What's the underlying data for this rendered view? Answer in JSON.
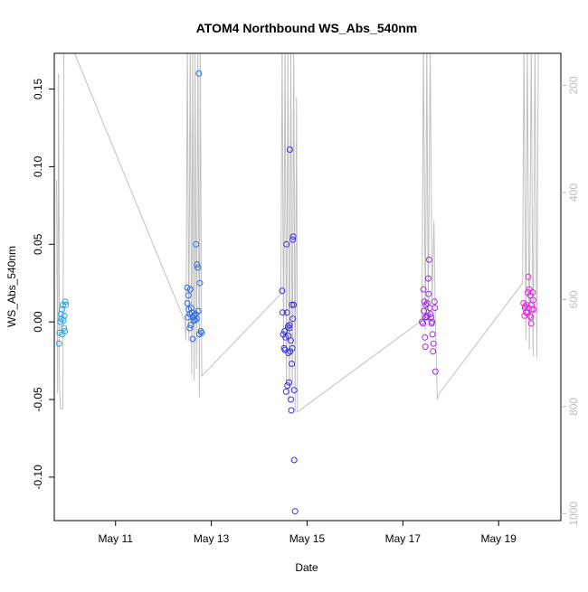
{
  "chart_data": {
    "type": "scatter",
    "title": "ATOM4 Northbound WS_Abs_540nm",
    "xlabel": "Date",
    "ylabel": "WS_Abs_540nm",
    "x_unit": "days (May)",
    "xlim": [
      9.72,
      20.3
    ],
    "ylim": [
      -0.128,
      0.173
    ],
    "x_ticks": [
      {
        "value": 11,
        "label": "May 11"
      },
      {
        "value": 13,
        "label": "May 13"
      },
      {
        "value": 15,
        "label": "May 15"
      },
      {
        "value": 17,
        "label": "May 17"
      },
      {
        "value": 19,
        "label": "May 19"
      }
    ],
    "y_ticks": [
      {
        "value": -0.1,
        "label": "-0.10"
      },
      {
        "value": -0.05,
        "label": "-0.05"
      },
      {
        "value": 0.0,
        "label": "0.00"
      },
      {
        "value": 0.05,
        "label": "0.05"
      },
      {
        "value": 0.1,
        "label": "0.10"
      },
      {
        "value": 0.15,
        "label": "0.15"
      }
    ],
    "y2_range_reversed": [
      1013,
      140
    ],
    "y2_ticks": [
      {
        "value": 200,
        "label": "200"
      },
      {
        "value": 400,
        "label": "400"
      },
      {
        "value": 600,
        "label": "600"
      },
      {
        "value": 800,
        "label": "800"
      },
      {
        "value": 1000,
        "label": "1000"
      }
    ],
    "points": [
      {
        "x": 9.82,
        "y": -0.014,
        "c": "#29a3e6"
      },
      {
        "x": 9.85,
        "y": 0.0,
        "c": "#29a3e6"
      },
      {
        "x": 9.86,
        "y": 0.005,
        "c": "#29a3e6"
      },
      {
        "x": 9.83,
        "y": -0.007,
        "c": "#29a3e6"
      },
      {
        "x": 9.88,
        "y": 0.008,
        "c": "#29a3e6"
      },
      {
        "x": 9.87,
        "y": 0.002,
        "c": "#29a3e6"
      },
      {
        "x": 9.9,
        "y": 0.011,
        "c": "#29a3e6"
      },
      {
        "x": 9.89,
        "y": -0.008,
        "c": "#29a3e6"
      },
      {
        "x": 9.92,
        "y": -0.004,
        "c": "#29a3e6"
      },
      {
        "x": 9.93,
        "y": 0.004,
        "c": "#29a3e6"
      },
      {
        "x": 9.95,
        "y": 0.013,
        "c": "#29a3e6"
      },
      {
        "x": 9.96,
        "y": 0.011,
        "c": "#29a3e6"
      },
      {
        "x": 9.91,
        "y": 0.001,
        "c": "#29a3e6"
      },
      {
        "x": 9.94,
        "y": -0.006,
        "c": "#29a3e6"
      },
      {
        "x": 12.5,
        "y": 0.022,
        "c": "#2d6ce8"
      },
      {
        "x": 12.52,
        "y": 0.017,
        "c": "#2d6ce8"
      },
      {
        "x": 12.5,
        "y": 0.012,
        "c": "#2d6ce8"
      },
      {
        "x": 12.53,
        "y": 0.008,
        "c": "#2d6ce8"
      },
      {
        "x": 12.55,
        "y": 0.005,
        "c": "#2d6ce8"
      },
      {
        "x": 12.51,
        "y": 0.003,
        "c": "#2d6ce8"
      },
      {
        "x": 12.56,
        "y": 0.021,
        "c": "#2d6ce8"
      },
      {
        "x": 12.58,
        "y": 0.009,
        "c": "#2d6ce8"
      },
      {
        "x": 12.6,
        "y": 0.006,
        "c": "#2d6ce8"
      },
      {
        "x": 12.57,
        "y": -0.002,
        "c": "#2d6ce8"
      },
      {
        "x": 12.62,
        "y": 0.003,
        "c": "#2d6ce8"
      },
      {
        "x": 12.64,
        "y": 0.004,
        "c": "#2d6ce8"
      },
      {
        "x": 12.66,
        "y": 0.001,
        "c": "#2d6ce8"
      },
      {
        "x": 12.55,
        "y": -0.004,
        "c": "#2d6ce8"
      },
      {
        "x": 12.61,
        "y": -0.011,
        "c": "#2d6ce8"
      },
      {
        "x": 12.68,
        "y": 0.05,
        "c": "#2d6ce8"
      },
      {
        "x": 12.7,
        "y": 0.037,
        "c": "#2d6ce8"
      },
      {
        "x": 12.72,
        "y": 0.035,
        "c": "#2d6ce8"
      },
      {
        "x": 12.74,
        "y": 0.16,
        "c": "#2d6ce8"
      },
      {
        "x": 12.76,
        "y": 0.025,
        "c": "#2d6ce8"
      },
      {
        "x": 12.73,
        "y": 0.007,
        "c": "#2d6ce8"
      },
      {
        "x": 12.67,
        "y": 0.005,
        "c": "#2d6ce8"
      },
      {
        "x": 12.69,
        "y": 0.002,
        "c": "#2d6ce8"
      },
      {
        "x": 12.78,
        "y": -0.006,
        "c": "#2d6ce8"
      },
      {
        "x": 12.8,
        "y": -0.007,
        "c": "#2d6ce8"
      },
      {
        "x": 12.75,
        "y": -0.008,
        "c": "#2d6ce8"
      },
      {
        "x": 12.63,
        "y": 0.001,
        "c": "#2d6ce8"
      },
      {
        "x": 14.48,
        "y": 0.02,
        "c": "#3a2fe0"
      },
      {
        "x": 14.5,
        "y": -0.008,
        "c": "#3a2fe0"
      },
      {
        "x": 14.52,
        "y": -0.017,
        "c": "#3a2fe0"
      },
      {
        "x": 14.49,
        "y": 0.006,
        "c": "#3a2fe0"
      },
      {
        "x": 14.55,
        "y": -0.01,
        "c": "#3a2fe0"
      },
      {
        "x": 14.54,
        "y": -0.018,
        "c": "#3a2fe0"
      },
      {
        "x": 14.57,
        "y": 0.05,
        "c": "#3a2fe0"
      },
      {
        "x": 14.58,
        "y": 0.006,
        "c": "#3a2fe0"
      },
      {
        "x": 14.6,
        "y": -0.003,
        "c": "#3a2fe0"
      },
      {
        "x": 14.61,
        "y": -0.02,
        "c": "#3a2fe0"
      },
      {
        "x": 14.59,
        "y": -0.041,
        "c": "#3a2fe0"
      },
      {
        "x": 14.56,
        "y": -0.045,
        "c": "#3a2fe0"
      },
      {
        "x": 14.62,
        "y": -0.039,
        "c": "#3a2fe0"
      },
      {
        "x": 14.64,
        "y": 0.111,
        "c": "#3a2fe0"
      },
      {
        "x": 14.63,
        "y": -0.002,
        "c": "#3a2fe0"
      },
      {
        "x": 14.65,
        "y": -0.019,
        "c": "#3a2fe0"
      },
      {
        "x": 14.66,
        "y": -0.05,
        "c": "#3a2fe0"
      },
      {
        "x": 14.67,
        "y": -0.057,
        "c": "#3a2fe0"
      },
      {
        "x": 14.68,
        "y": -0.027,
        "c": "#3a2fe0"
      },
      {
        "x": 14.69,
        "y": -0.017,
        "c": "#3a2fe0"
      },
      {
        "x": 14.7,
        "y": 0.053,
        "c": "#3a2fe0"
      },
      {
        "x": 14.71,
        "y": 0.055,
        "c": "#3a2fe0"
      },
      {
        "x": 14.72,
        "y": 0.011,
        "c": "#3a2fe0"
      },
      {
        "x": 14.7,
        "y": 0.002,
        "c": "#3a2fe0"
      },
      {
        "x": 14.73,
        "y": -0.044,
        "c": "#3a2fe0"
      },
      {
        "x": 14.73,
        "y": -0.089,
        "c": "#3a2fe0"
      },
      {
        "x": 14.75,
        "y": -0.122,
        "c": "#3a2fe0"
      },
      {
        "x": 14.68,
        "y": 0.011,
        "c": "#3a2fe0"
      },
      {
        "x": 14.53,
        "y": -0.006,
        "c": "#3a2fe0"
      },
      {
        "x": 14.66,
        "y": -0.012,
        "c": "#3a2fe0"
      },
      {
        "x": 14.61,
        "y": -0.009,
        "c": "#3a2fe0"
      },
      {
        "x": 14.63,
        "y": -0.004,
        "c": "#3a2fe0"
      },
      {
        "x": 17.4,
        "y": 0.0,
        "c": "#9a2ce3"
      },
      {
        "x": 17.43,
        "y": 0.021,
        "c": "#9a2ce3"
      },
      {
        "x": 17.45,
        "y": 0.013,
        "c": "#9a2ce3"
      },
      {
        "x": 17.44,
        "y": 0.007,
        "c": "#9a2ce3"
      },
      {
        "x": 17.42,
        "y": -0.001,
        "c": "#9a2ce3"
      },
      {
        "x": 17.47,
        "y": 0.003,
        "c": "#9a2ce3"
      },
      {
        "x": 17.48,
        "y": 0.011,
        "c": "#9a2ce3"
      },
      {
        "x": 17.5,
        "y": 0.003,
        "c": "#9a2ce3"
      },
      {
        "x": 17.46,
        "y": -0.01,
        "c": "#9a2ce3"
      },
      {
        "x": 17.47,
        "y": -0.016,
        "c": "#9a2ce3"
      },
      {
        "x": 17.52,
        "y": 0.004,
        "c": "#9a2ce3"
      },
      {
        "x": 17.53,
        "y": 0.028,
        "c": "#9a2ce3"
      },
      {
        "x": 17.55,
        "y": 0.04,
        "c": "#9a2ce3"
      },
      {
        "x": 17.54,
        "y": 0.018,
        "c": "#9a2ce3"
      },
      {
        "x": 17.56,
        "y": 0.009,
        "c": "#9a2ce3"
      },
      {
        "x": 17.58,
        "y": 0.005,
        "c": "#9a2ce3"
      },
      {
        "x": 17.6,
        "y": -0.001,
        "c": "#9a2ce3"
      },
      {
        "x": 17.62,
        "y": -0.008,
        "c": "#9a2ce3"
      },
      {
        "x": 17.64,
        "y": -0.014,
        "c": "#9a2ce3"
      },
      {
        "x": 17.63,
        "y": -0.019,
        "c": "#9a2ce3"
      },
      {
        "x": 17.66,
        "y": 0.013,
        "c": "#9a2ce3"
      },
      {
        "x": 17.67,
        "y": 0.009,
        "c": "#9a2ce3"
      },
      {
        "x": 17.68,
        "y": -0.032,
        "c": "#9a2ce3"
      },
      {
        "x": 17.61,
        "y": 0.0,
        "c": "#9a2ce3"
      },
      {
        "x": 17.59,
        "y": 0.003,
        "c": "#9a2ce3"
      },
      {
        "x": 17.51,
        "y": 0.012,
        "c": "#9a2ce3"
      },
      {
        "x": 19.52,
        "y": 0.012,
        "c": "#e32cd9"
      },
      {
        "x": 19.55,
        "y": 0.009,
        "c": "#e32cd9"
      },
      {
        "x": 19.54,
        "y": 0.004,
        "c": "#e32cd9"
      },
      {
        "x": 19.58,
        "y": 0.011,
        "c": "#e32cd9"
      },
      {
        "x": 19.6,
        "y": 0.006,
        "c": "#e32cd9"
      },
      {
        "x": 19.62,
        "y": 0.029,
        "c": "#e32cd9"
      },
      {
        "x": 19.61,
        "y": 0.019,
        "c": "#e32cd9"
      },
      {
        "x": 19.64,
        "y": 0.021,
        "c": "#e32cd9"
      },
      {
        "x": 19.66,
        "y": 0.017,
        "c": "#e32cd9"
      },
      {
        "x": 19.63,
        "y": 0.009,
        "c": "#e32cd9"
      },
      {
        "x": 19.67,
        "y": 0.003,
        "c": "#e32cd9"
      },
      {
        "x": 19.68,
        "y": -0.001,
        "c": "#e32cd9"
      },
      {
        "x": 19.7,
        "y": 0.008,
        "c": "#e32cd9"
      },
      {
        "x": 19.71,
        "y": 0.019,
        "c": "#e32cd9"
      },
      {
        "x": 19.72,
        "y": 0.014,
        "c": "#e32cd9"
      },
      {
        "x": 19.73,
        "y": 0.008,
        "c": "#e32cd9"
      },
      {
        "x": 19.65,
        "y": 0.004,
        "c": "#e32cd9"
      },
      {
        "x": 19.57,
        "y": 0.006,
        "c": "#e32cd9"
      },
      {
        "x": 19.56,
        "y": 0.01,
        "c": "#e32cd9"
      },
      {
        "x": 19.69,
        "y": 0.011,
        "c": "#e32cd9"
      }
    ],
    "altitude_line": {
      "color": "#c0c0c0",
      "points": [
        [
          9.75,
          0.091
        ],
        [
          9.77,
          0.091
        ],
        [
          9.79,
          -0.046
        ],
        [
          9.81,
          0.16
        ],
        [
          9.83,
          -0.043
        ],
        [
          9.85,
          -0.056
        ],
        [
          9.88,
          -0.056
        ],
        [
          9.9,
          -0.056
        ],
        [
          9.92,
          0.18
        ],
        [
          10.05,
          0.18
        ],
        [
          12.45,
          0.0
        ],
        [
          12.47,
          -0.012
        ],
        [
          12.5,
          0.18
        ],
        [
          12.53,
          -0.012
        ],
        [
          12.56,
          0.18
        ],
        [
          12.59,
          -0.034
        ],
        [
          12.61,
          0.18
        ],
        [
          12.64,
          -0.038
        ],
        [
          12.66,
          0.18
        ],
        [
          12.69,
          -0.03
        ],
        [
          12.72,
          0.18
        ],
        [
          12.75,
          -0.049
        ],
        [
          12.77,
          0.18
        ],
        [
          12.8,
          -0.035
        ],
        [
          14.45,
          0.018
        ],
        [
          14.48,
          0.18
        ],
        [
          14.51,
          -0.02
        ],
        [
          14.54,
          0.18
        ],
        [
          14.57,
          -0.04
        ],
        [
          14.6,
          0.18
        ],
        [
          14.63,
          -0.05
        ],
        [
          14.66,
          0.18
        ],
        [
          14.69,
          -0.046
        ],
        [
          14.72,
          0.18
        ],
        [
          14.75,
          -0.058
        ],
        [
          14.78,
          0.145
        ],
        [
          14.8,
          -0.058
        ],
        [
          17.4,
          0.001
        ],
        [
          17.43,
          0.18
        ],
        [
          17.47,
          -0.005
        ],
        [
          17.5,
          0.18
        ],
        [
          17.53,
          0.0
        ],
        [
          17.57,
          0.18
        ],
        [
          17.61,
          0.014
        ],
        [
          17.65,
          0.065
        ],
        [
          17.68,
          0.001
        ],
        [
          17.72,
          -0.05
        ],
        [
          17.76,
          -0.046
        ],
        [
          19.5,
          0.025
        ],
        [
          19.53,
          0.18
        ],
        [
          19.57,
          -0.012
        ],
        [
          19.6,
          0.18
        ],
        [
          19.64,
          -0.018
        ],
        [
          19.68,
          0.18
        ],
        [
          19.72,
          -0.022
        ],
        [
          19.76,
          0.18
        ],
        [
          19.8,
          -0.023
        ],
        [
          19.83,
          0.18
        ]
      ]
    },
    "grid": false,
    "legend": "none"
  }
}
